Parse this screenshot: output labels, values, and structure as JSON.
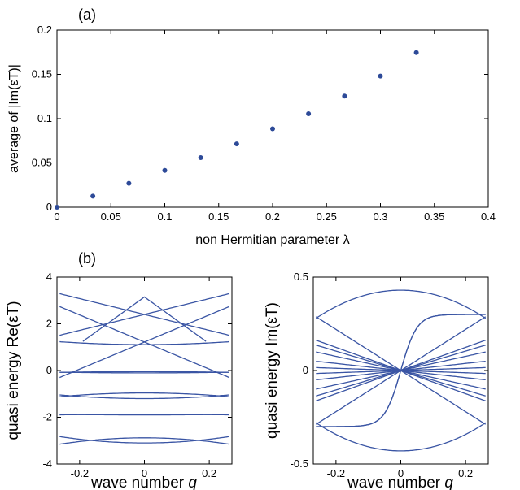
{
  "chart_data": [
    {
      "panel": "(a)",
      "type": "scatter",
      "xlabel": "non Hermitian parameter λ",
      "ylabel": "average of |Im(εT)|",
      "xlim": [
        0,
        0.4
      ],
      "ylim": [
        0,
        0.2
      ],
      "xticks": [
        "0",
        "0.05",
        "0.1",
        "0.15",
        "0.2",
        "0.25",
        "0.3",
        "0.35",
        "0.4"
      ],
      "yticks": [
        "0",
        "0.05",
        "0.1",
        "0.15",
        "0.2"
      ],
      "color": "#2d4a98",
      "x": [
        0,
        0.0333,
        0.0667,
        0.1,
        0.1333,
        0.1667,
        0.2,
        0.2333,
        0.2667,
        0.3,
        0.3333
      ],
      "y": [
        0,
        0.0125,
        0.027,
        0.0415,
        0.056,
        0.0715,
        0.0885,
        0.1055,
        0.1255,
        0.148,
        0.1745
      ]
    },
    {
      "panel": "(b)",
      "type": "line",
      "xlabel": "wave number",
      "xlabel_var": "q",
      "ylabel": "quasi energy Re(εT)",
      "xlim": [
        -0.27,
        0.27
      ],
      "ylim": [
        -4,
        4
      ],
      "xticks": [
        "-0.2",
        "0",
        "0.2"
      ],
      "yticks": [
        "-4",
        "-2",
        "0",
        "2",
        "4"
      ],
      "color": "#3a55a4",
      "x_range": [
        -0.2618,
        0.2618
      ],
      "series": [
        {
          "a": 2.4,
          "b": 3.4,
          "x0": -0.2618,
          "x1": 0.2618
        },
        {
          "a": 2.4,
          "b": -3.4,
          "x0": -0.2618,
          "x1": 0.2618
        },
        {
          "a": 3.15,
          "b": -10.0,
          "x0": -0.19,
          "x1": 0.19
        },
        {
          "a": 1.22,
          "b": 5.8,
          "x0": -0.2618,
          "x1": 0.2618
        },
        {
          "a": 1.22,
          "b": -5.8,
          "x0": -0.2618,
          "x1": 0.2618
        },
        {
          "a": 1.11,
          "b": 0.0,
          "c": 1.8,
          "x0": -0.2618,
          "x1": 0.2618
        },
        {
          "a": -0.05,
          "b": 0.0,
          "c": -0.4,
          "x0": -0.2618,
          "x1": 0.2618
        },
        {
          "a": -0.1,
          "b": 0.0,
          "c": 0.4,
          "x0": -0.2618,
          "x1": 0.2618
        },
        {
          "a": -0.96,
          "b": 0.0,
          "c": -2.3,
          "x0": -0.2618,
          "x1": 0.2618
        },
        {
          "a": -1.2,
          "b": 0.0,
          "c": 2.3,
          "x0": -0.2618,
          "x1": 0.2618
        },
        {
          "a": -1.87,
          "b": 0.0,
          "c": -0.4,
          "x0": -0.2618,
          "x1": 0.2618
        },
        {
          "a": -1.9,
          "b": 0.0,
          "c": 0.4,
          "x0": -0.2618,
          "x1": 0.2618
        },
        {
          "a": -2.88,
          "b": 0.0,
          "c": -4.0,
          "x0": -0.2618,
          "x1": 0.2618
        },
        {
          "a": -3.1,
          "b": 0.0,
          "c": 4.0,
          "x0": -0.2618,
          "x1": 0.2618
        }
      ]
    },
    {
      "type": "line",
      "xlabel": "wave number",
      "xlabel_var": "q",
      "ylabel": "quasi energy Im(εT)",
      "xlim": [
        -0.27,
        0.27
      ],
      "ylim": [
        -0.5,
        0.5
      ],
      "xticks": [
        "-0.2",
        "0",
        "0.2"
      ],
      "yticks": [
        "-0.5",
        "0",
        "0.5"
      ],
      "color": "#3a55a4",
      "x_range": [
        -0.2618,
        0.2618
      ],
      "series": [
        {
          "a": 0.43,
          "b": 0.0,
          "c": -2.2,
          "x0": -0.2618,
          "x1": 0.2618
        },
        {
          "a": -0.43,
          "b": 0.0,
          "c": 2.2,
          "x0": -0.2618,
          "x1": 0.2618
        },
        {
          "a": 0.0,
          "b": -1.1,
          "x0": -0.2618,
          "x1": 0.2618
        },
        {
          "a": 0.0,
          "b": 1.1,
          "x0": -0.2618,
          "x1": 0.2618
        },
        {
          "a": 0.0,
          "b": -0.62,
          "x0": -0.2618,
          "x1": 0.2618
        },
        {
          "a": 0.0,
          "b": 0.62,
          "x0": -0.2618,
          "x1": 0.2618
        },
        {
          "a": 0.0,
          "b": -0.38,
          "x0": -0.2618,
          "x1": 0.2618
        },
        {
          "a": 0.0,
          "b": 0.38,
          "x0": -0.2618,
          "x1": 0.2618
        },
        {
          "a": 0.0,
          "b": -0.19,
          "x0": -0.2618,
          "x1": 0.2618
        },
        {
          "a": 0.0,
          "b": 0.19,
          "x0": -0.2618,
          "x1": 0.2618
        },
        {
          "a": 0.0,
          "b": -0.06,
          "x0": -0.2618,
          "x1": 0.2618
        },
        {
          "a": 0.0,
          "b": 0.06,
          "x0": -0.2618,
          "x1": 0.2618
        },
        {
          "a": 0.0,
          "b": -0.52,
          "x0": -0.2618,
          "x1": 0.2618
        },
        {
          "a": 0.0,
          "b": 0.52,
          "x0": -0.2618,
          "x1": 0.2618
        },
        {
          "a": 0.0,
          "b": 0.0,
          "c": 2.0,
          "d": 1.2,
          "x0": -0.2618,
          "x1": 0.2618
        },
        {
          "a": 0.0,
          "b": 0.0,
          "c": -2.0,
          "d": -1.2,
          "x0": -0.2618,
          "x1": 0.2618
        }
      ]
    }
  ]
}
